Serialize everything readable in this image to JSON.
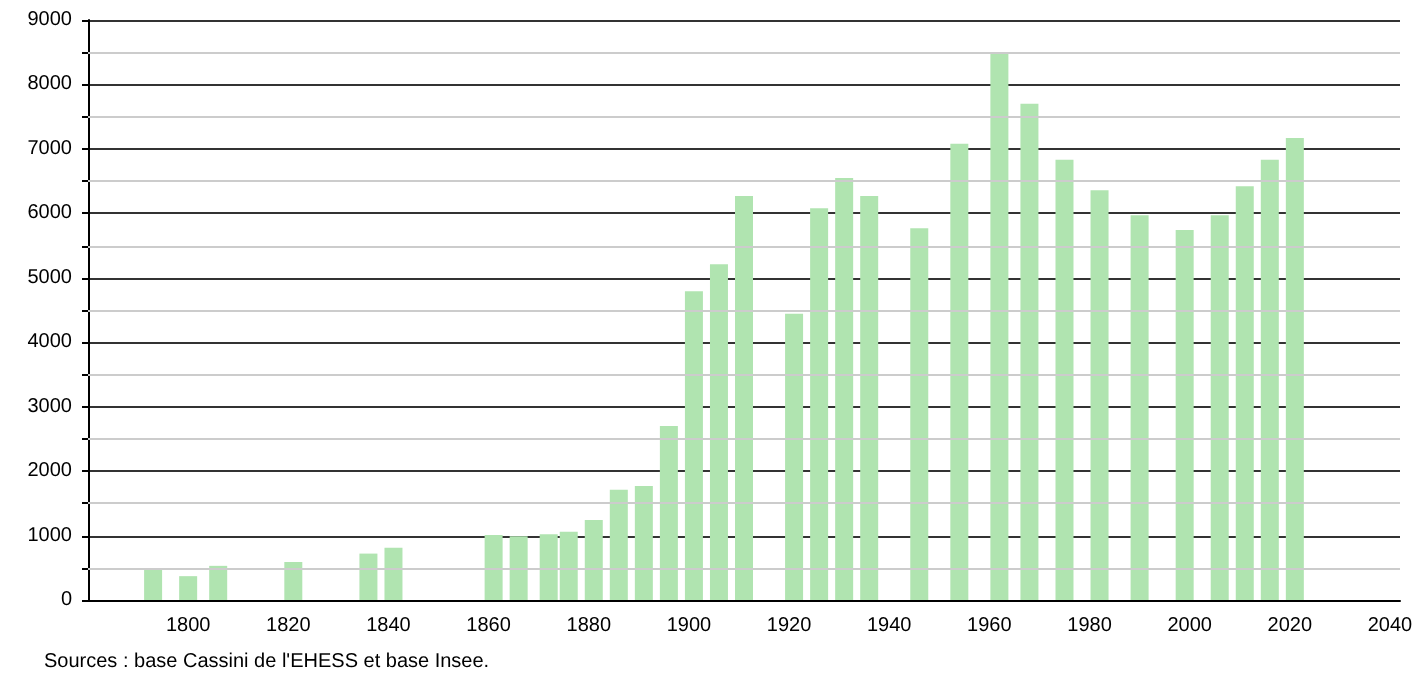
{
  "chart_data": {
    "type": "bar",
    "x": [
      1793,
      1800,
      1806,
      1821,
      1836,
      1841,
      1861,
      1866,
      1872,
      1876,
      1881,
      1886,
      1891,
      1896,
      1901,
      1906,
      1911,
      1921,
      1926,
      1931,
      1936,
      1946,
      1954,
      1962,
      1968,
      1975,
      1982,
      1990,
      1999,
      2006,
      2011,
      2016,
      2021
    ],
    "values": [
      490,
      370,
      530,
      590,
      720,
      810,
      1010,
      990,
      1020,
      1060,
      1240,
      1710,
      1770,
      2700,
      4790,
      5210,
      6270,
      4440,
      6080,
      6550,
      6270,
      5770,
      7080,
      8500,
      7700,
      6830,
      6360,
      5970,
      5740,
      5970,
      6420,
      6830,
      7170
    ],
    "color": "#b0e4b0",
    "xlim": [
      1780,
      2042
    ],
    "xticks": [
      1800,
      1820,
      1840,
      1860,
      1880,
      1900,
      1920,
      1940,
      1960,
      1980,
      2000,
      2020,
      2040
    ],
    "ylim": [
      0,
      9000
    ],
    "yticks": [
      0,
      1000,
      2000,
      3000,
      4000,
      5000,
      6000,
      7000,
      8000,
      9000
    ],
    "grid": "y",
    "annotations": [
      "Sources : base Cassini de l'EHESS et base Insee."
    ]
  }
}
